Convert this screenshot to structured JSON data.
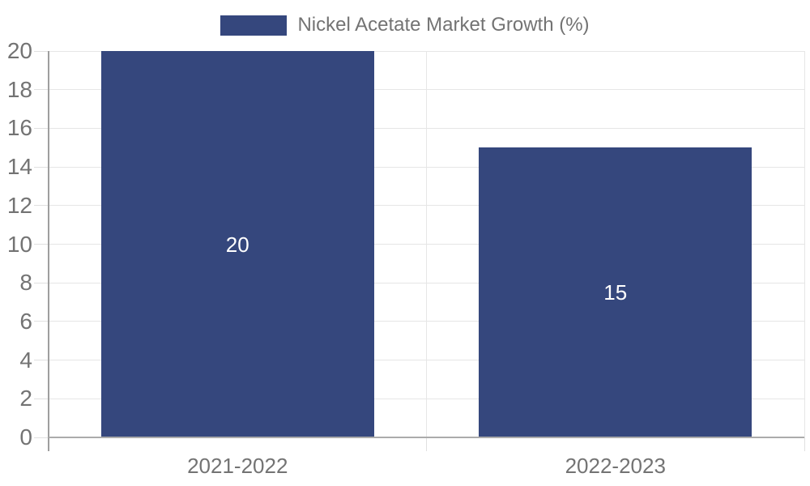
{
  "legend": {
    "label": "Nickel Acetate Market Growth (%)"
  },
  "chart_data": {
    "type": "bar",
    "title": "",
    "categories": [
      "2021-2022",
      "2022-2023"
    ],
    "series": [
      {
        "name": "Nickel Acetate Market Growth (%)",
        "values": [
          20,
          15
        ]
      }
    ],
    "value_labels": [
      "20",
      "15"
    ],
    "xlabel": "",
    "ylabel": "",
    "ylim": [
      0,
      20
    ],
    "ytick_step": 2,
    "yticks": [
      0,
      2,
      4,
      6,
      8,
      10,
      12,
      14,
      16,
      18,
      20
    ],
    "grid": true,
    "legend_position": "top-center",
    "bar_color": "#35477d",
    "value_label_color": "#ffffff"
  },
  "colors": {
    "background": "#ffffff",
    "grid_line": "#e6e6e6",
    "tick": "#e0e0e0",
    "y_axis_line": "#9e9e9e",
    "x_axis_line": "#ababab",
    "text": "#737373"
  }
}
